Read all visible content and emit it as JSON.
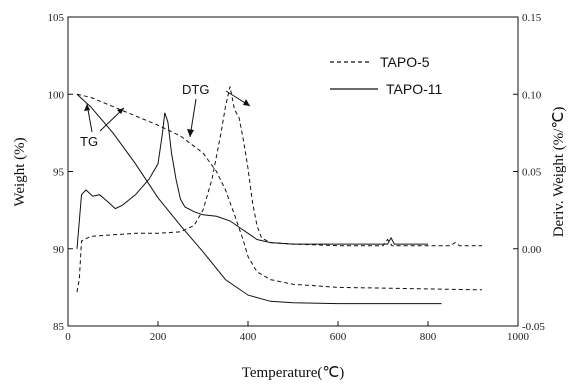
{
  "chart_data": {
    "type": "line",
    "xlabel": "Temperature(℃)",
    "ylabel_left": "Weight  (%)",
    "ylabel_right": "Deriv.  Weight  (%/℃)",
    "xlim": [
      0,
      1000
    ],
    "ylim_left": [
      85,
      105
    ],
    "ylim_right": [
      -0.05,
      0.15
    ],
    "x_ticks": [
      0,
      200,
      400,
      600,
      800,
      1000
    ],
    "x_tick_labels": [
      "0",
      "200",
      "400",
      "600",
      "800",
      "1000"
    ],
    "y_left_ticks": [
      85,
      90,
      95,
      100,
      105
    ],
    "y_left_tick_labels": [
      "85",
      "90",
      "95",
      "100",
      "105"
    ],
    "y_right_ticks": [
      -0.05,
      0.0,
      0.05,
      0.1,
      0.15
    ],
    "y_right_tick_labels": [
      "-0.05",
      "0.00",
      "0.05",
      "0.10",
      "0.15"
    ],
    "grid": false,
    "legend_position": "top-right",
    "legend": [
      {
        "label": "TAPO-5",
        "dash": "dashed"
      },
      {
        "label": "TAPO-11",
        "dash": "solid"
      }
    ],
    "annotations": [
      "TG",
      "DTG"
    ],
    "series": [
      {
        "name": "TAPO-5",
        "kind": "TG",
        "axis": "left",
        "dash": "dashed",
        "x": [
          20,
          50,
          100,
          150,
          200,
          250,
          300,
          330,
          350,
          370,
          390,
          400,
          420,
          450,
          500,
          550,
          600,
          700,
          800,
          900,
          920
        ],
        "y": [
          100.0,
          99.8,
          99.2,
          98.6,
          98.0,
          97.3,
          96.2,
          95.0,
          93.8,
          92.2,
          90.5,
          89.5,
          88.5,
          88.0,
          87.7,
          87.6,
          87.5,
          87.45,
          87.4,
          87.35,
          87.35
        ]
      },
      {
        "name": "TAPO-11",
        "kind": "TG",
        "axis": "left",
        "dash": "solid",
        "x": [
          20,
          50,
          100,
          150,
          200,
          250,
          300,
          350,
          400,
          450,
          500,
          600,
          700,
          830
        ],
        "y": [
          100.0,
          99.2,
          97.5,
          95.5,
          93.3,
          91.5,
          89.8,
          88.0,
          87.0,
          86.6,
          86.5,
          86.45,
          86.45,
          86.45
        ]
      },
      {
        "name": "TAPO-5",
        "kind": "DTG",
        "axis": "right",
        "dash": "dashed",
        "x": [
          20,
          25,
          30,
          50,
          100,
          150,
          200,
          250,
          280,
          300,
          320,
          340,
          350,
          360,
          370,
          380,
          390,
          400,
          410,
          420,
          430,
          450,
          500,
          600,
          700,
          710,
          720,
          730,
          800,
          850,
          860,
          870,
          900,
          920
        ],
        "y": [
          -0.028,
          -0.02,
          0.005,
          0.008,
          0.009,
          0.01,
          0.01,
          0.011,
          0.015,
          0.025,
          0.045,
          0.075,
          0.092,
          0.105,
          0.09,
          0.085,
          0.07,
          0.052,
          0.03,
          0.015,
          0.007,
          0.004,
          0.003,
          0.002,
          0.002,
          0.006,
          0.002,
          0.002,
          0.002,
          0.002,
          0.004,
          0.002,
          0.002,
          0.002
        ]
      },
      {
        "name": "TAPO-11",
        "kind": "DTG",
        "axis": "right",
        "dash": "solid",
        "x": [
          20,
          30,
          40,
          55,
          70,
          90,
          105,
          120,
          150,
          180,
          200,
          210,
          215,
          222,
          230,
          240,
          250,
          260,
          280,
          300,
          330,
          360,
          380,
          400,
          420,
          450,
          500,
          600,
          700,
          710,
          718,
          725,
          800
        ],
        "y": [
          0.0,
          0.035,
          0.038,
          0.034,
          0.035,
          0.03,
          0.026,
          0.028,
          0.035,
          0.045,
          0.055,
          0.075,
          0.088,
          0.082,
          0.062,
          0.045,
          0.032,
          0.027,
          0.024,
          0.022,
          0.021,
          0.018,
          0.014,
          0.01,
          0.006,
          0.004,
          0.003,
          0.003,
          0.003,
          0.003,
          0.007,
          0.003,
          0.003
        ]
      }
    ]
  }
}
